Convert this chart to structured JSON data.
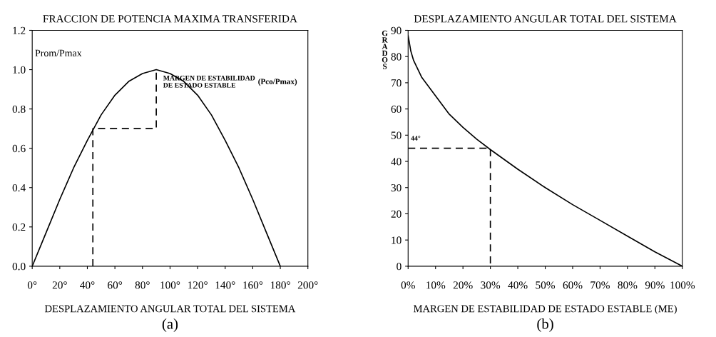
{
  "chart_data": [
    {
      "type": "line",
      "title": "FRACCION DE POTENCIA MAXIMA TRANSFERIDA",
      "xlabel": "DESPLAZAMIENTO ANGULAR TOTAL DEL SISTEMA",
      "ylabel": "Prom/Pmax",
      "xlim": [
        0,
        200
      ],
      "ylim": [
        0,
        1.2
      ],
      "xticks": [
        {
          "value": 0,
          "label": "0°"
        },
        {
          "value": 20,
          "label": "20°"
        },
        {
          "value": 40,
          "label": "40°"
        },
        {
          "value": 60,
          "label": "60°"
        },
        {
          "value": 80,
          "label": "80°"
        },
        {
          "value": 100,
          "label": "100°"
        },
        {
          "value": 120,
          "label": "120°"
        },
        {
          "value": 140,
          "label": "140°"
        },
        {
          "value": 160,
          "label": "160°"
        },
        {
          "value": 180,
          "label": "180°"
        },
        {
          "value": 200,
          "label": "200°"
        }
      ],
      "yticks": [
        {
          "value": 0,
          "label": "0.0"
        },
        {
          "value": 0.2,
          "label": "0.2"
        },
        {
          "value": 0.4,
          "label": "0.4"
        },
        {
          "value": 0.6,
          "label": "0.6"
        },
        {
          "value": 0.8,
          "label": "0.8"
        },
        {
          "value": 1.0,
          "label": "1.0"
        },
        {
          "value": 1.2,
          "label": "1.2"
        }
      ],
      "grid": false,
      "legend": false,
      "series": [
        {
          "color": "#000000",
          "line_style": "solid",
          "x": [
            0,
            10,
            20,
            30,
            40,
            50,
            60,
            70,
            80,
            90,
            100,
            110,
            120,
            130,
            140,
            150,
            160,
            170,
            180
          ],
          "values": [
            0,
            0.17,
            0.34,
            0.5,
            0.64,
            0.77,
            0.87,
            0.94,
            0.98,
            1.0,
            0.98,
            0.94,
            0.87,
            0.77,
            0.64,
            0.5,
            0.34,
            0.17,
            0
          ]
        },
        {
          "color": "#000000",
          "line_style": "dashed",
          "x": [
            44,
            44,
            90,
            90
          ],
          "values": [
            0,
            0.7,
            0.7,
            1.0
          ]
        }
      ],
      "annotations": [
        "MARGEN DE ESTABILIDAD\nDE ESTADO ESTABLE",
        "(Pco/Pmax)",
        "(a)"
      ]
    },
    {
      "type": "line",
      "title": "DESPLAZAMIENTO ANGULAR TOTAL DEL SISTEMA",
      "xlabel": "MARGEN DE ESTABILIDAD DE ESTADO ESTABLE (ME)",
      "ylabel": "GRADOS",
      "xlim": [
        0,
        100
      ],
      "ylim": [
        0,
        90
      ],
      "xticks": [
        {
          "value": 0,
          "label": "0%"
        },
        {
          "value": 10,
          "label": "10%"
        },
        {
          "value": 20,
          "label": "20%"
        },
        {
          "value": 30,
          "label": "30%"
        },
        {
          "value": 40,
          "label": "40%"
        },
        {
          "value": 50,
          "label": "50%"
        },
        {
          "value": 60,
          "label": "60%"
        },
        {
          "value": 70,
          "label": "70%"
        },
        {
          "value": 80,
          "label": "80%"
        },
        {
          "value": 90,
          "label": "90%"
        },
        {
          "value": 100,
          "label": "100%"
        }
      ],
      "yticks": [
        0,
        10,
        20,
        30,
        40,
        50,
        60,
        70,
        80,
        90
      ],
      "grid": false,
      "legend": false,
      "series": [
        {
          "color": "#000000",
          "line_style": "solid",
          "x": [
            0,
            1,
            2,
            5,
            10,
            15,
            20,
            25,
            30,
            40,
            50,
            60,
            70,
            80,
            90,
            100
          ],
          "values": [
            88,
            82,
            78.5,
            72,
            65,
            58,
            53,
            48.5,
            44.5,
            37,
            30,
            23.5,
            17.5,
            11.5,
            5.5,
            0
          ]
        },
        {
          "color": "#000000",
          "line_style": "dashed",
          "x": [
            0,
            30,
            30
          ],
          "values": [
            45,
            45,
            0
          ]
        }
      ],
      "annotations": [
        "44°",
        "(b)"
      ]
    }
  ]
}
